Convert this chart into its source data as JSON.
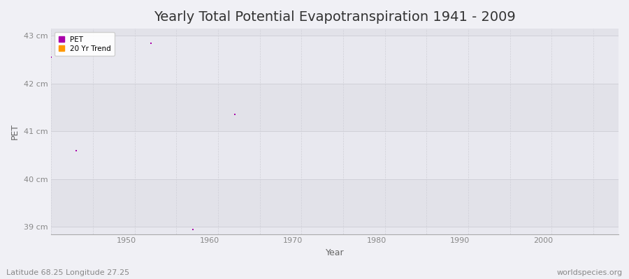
{
  "title": "Yearly Total Potential Evapotranspiration 1941 - 2009",
  "xlabel": "Year",
  "ylabel": "PET",
  "xlim": [
    1941,
    2009
  ],
  "ylim": [
    38.85,
    43.15
  ],
  "yticks": [
    39,
    40,
    41,
    42,
    43
  ],
  "ytick_labels": [
    "39 cm",
    "40 cm",
    "41 cm",
    "42 cm",
    "43 cm"
  ],
  "xticks": [
    1950,
    1960,
    1970,
    1980,
    1990,
    2000
  ],
  "fig_bg_color": "#f0f0f5",
  "plot_bg_color": "#e8e8ef",
  "band_color_light": "#e8e8ef",
  "band_color_dark": "#e2e2e9",
  "grid_h_color": "#d0d0d8",
  "grid_v_color": "#d0d0d8",
  "pet_color": "#aa00aa",
  "trend_color": "#ff9900",
  "pet_data": [
    [
      1941,
      42.55
    ],
    [
      1944,
      40.6
    ],
    [
      1953,
      42.85
    ],
    [
      1958,
      38.95
    ],
    [
      1963,
      41.35
    ]
  ],
  "footnote_left": "Latitude 68.25 Longitude 27.25",
  "footnote_right": "worldspecies.org",
  "title_fontsize": 14,
  "axis_label_fontsize": 9,
  "tick_fontsize": 8,
  "footnote_fontsize": 8,
  "marker_size": 4
}
